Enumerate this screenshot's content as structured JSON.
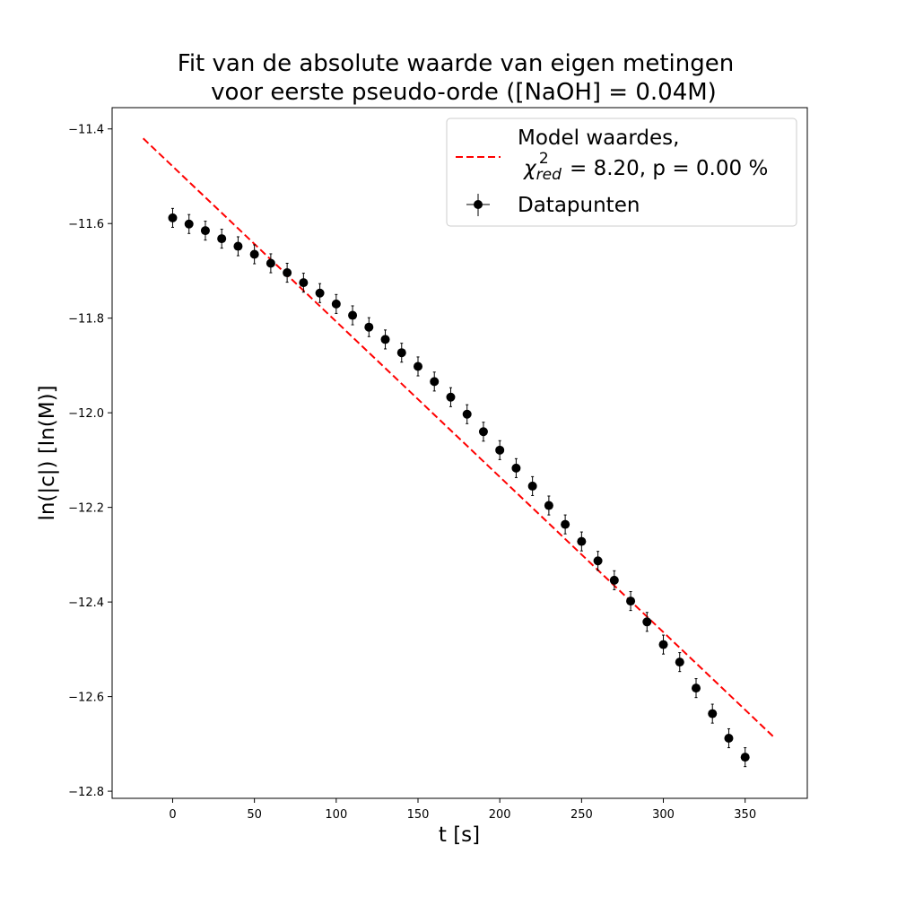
{
  "chart_data": {
    "type": "scatter",
    "title_line1": "Fit van de absolute waarde van eigen metingen",
    "title_line2": "voor eerste pseudo-orde ([NaOH] = 0.04M)",
    "xlabel": "t [s]",
    "ylabel": "ln(|c|) [ln(M)]",
    "xlim": [
      -37,
      388
    ],
    "ylim": [
      -12.815,
      -11.355
    ],
    "x_ticks": [
      0,
      50,
      100,
      150,
      200,
      250,
      300,
      350
    ],
    "y_ticks": [
      -11.4,
      -11.6,
      -11.8,
      -12.0,
      -12.2,
      -12.4,
      -12.6,
      -12.8
    ],
    "grid": false,
    "legend_position": "top-right",
    "series": [
      {
        "name": "Model waardes,",
        "name_line2": {
          "chi": "χ",
          "sup": "2",
          "sub": "red",
          "rest": " = 8.20, p = 0.00 %"
        },
        "kind": "line",
        "style": "dashed",
        "color": "#ff0000",
        "x": [
          -18,
          368
        ],
        "y": [
          -11.42,
          -12.687
        ]
      },
      {
        "name": "Datapunten",
        "kind": "errorbar",
        "color": "#000000",
        "yerr": 0.02,
        "x": [
          0,
          10,
          20,
          30,
          40,
          50,
          60,
          70,
          80,
          90,
          100,
          110,
          120,
          130,
          140,
          150,
          160,
          170,
          180,
          190,
          200,
          210,
          220,
          230,
          240,
          250,
          260,
          270,
          280,
          290,
          300,
          310,
          320,
          330,
          340,
          350
        ],
        "y": [
          -11.588,
          -11.601,
          -11.615,
          -11.632,
          -11.648,
          -11.665,
          -11.684,
          -11.704,
          -11.725,
          -11.747,
          -11.77,
          -11.794,
          -11.819,
          -11.845,
          -11.873,
          -11.902,
          -11.934,
          -11.967,
          -12.003,
          -12.04,
          -12.079,
          -12.117,
          -12.155,
          -12.196,
          -12.236,
          -12.272,
          -12.313,
          -12.354,
          -12.398,
          -12.442,
          -12.49,
          -12.527,
          -12.582,
          -12.636,
          -12.688,
          -12.728
        ]
      }
    ]
  }
}
